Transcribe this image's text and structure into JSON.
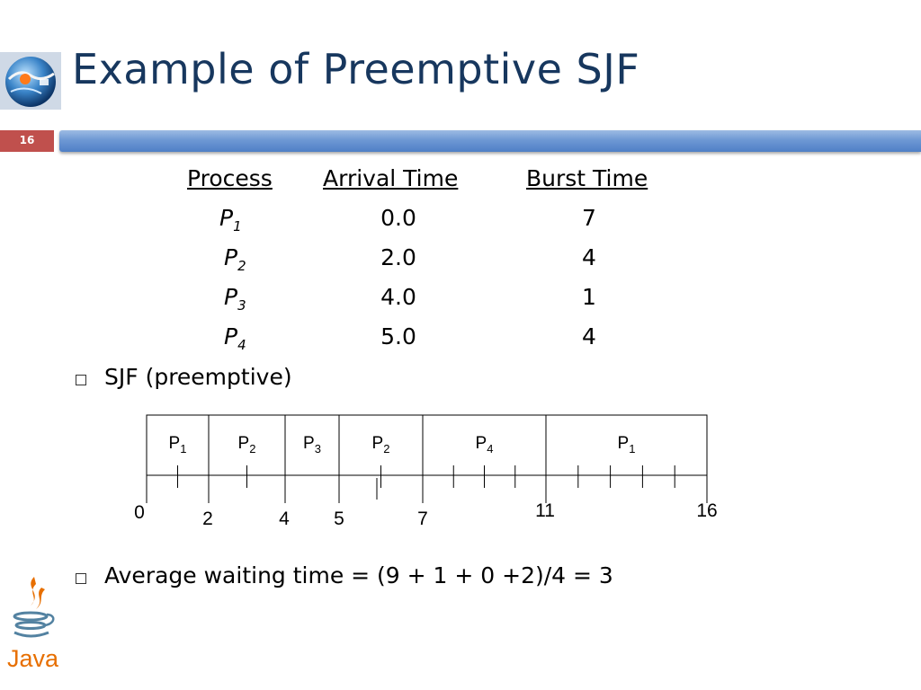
{
  "slide": {
    "title": "Example of Preemptive SJF",
    "number": "16"
  },
  "table": {
    "headers": [
      "Process",
      "Arrival Time",
      "Burst Time"
    ],
    "rows": [
      {
        "process": "P",
        "sub": "1",
        "arrival": "0.0",
        "burst": "7"
      },
      {
        "process": "P",
        "sub": "2",
        "arrival": "2.0",
        "burst": "4"
      },
      {
        "process": "P",
        "sub": "3",
        "arrival": "4.0",
        "burst": "1"
      },
      {
        "process": "P",
        "sub": "4",
        "arrival": "5.0",
        "burst": "4"
      }
    ]
  },
  "bullets": [
    "SJF (preemptive)",
    "Average waiting time = (9 + 1 + 0 +2)/4 = 3"
  ],
  "gantt": {
    "segments": [
      {
        "label": "P",
        "sub": "1",
        "start": 0,
        "end": 2
      },
      {
        "label": "P",
        "sub": "2",
        "start": 2,
        "end": 4
      },
      {
        "label": "P",
        "sub": "3",
        "start": 4,
        "end": 5
      },
      {
        "label": "P",
        "sub": "2",
        "start": 5,
        "end": 7
      },
      {
        "label": "P",
        "sub": "4",
        "start": 7,
        "end": 11
      },
      {
        "label": "P",
        "sub": "1",
        "start": 11,
        "end": 16
      }
    ],
    "time_labels": [
      "0",
      "2",
      "4",
      "5",
      "7",
      "11",
      "16"
    ]
  },
  "logos": {
    "java_text": "Java",
    "globe_icon": "globe-logo-icon"
  },
  "colors": {
    "title": "#17375e",
    "slide_number_bg": "#c0504d",
    "title_bar": "#4f7fc6"
  }
}
